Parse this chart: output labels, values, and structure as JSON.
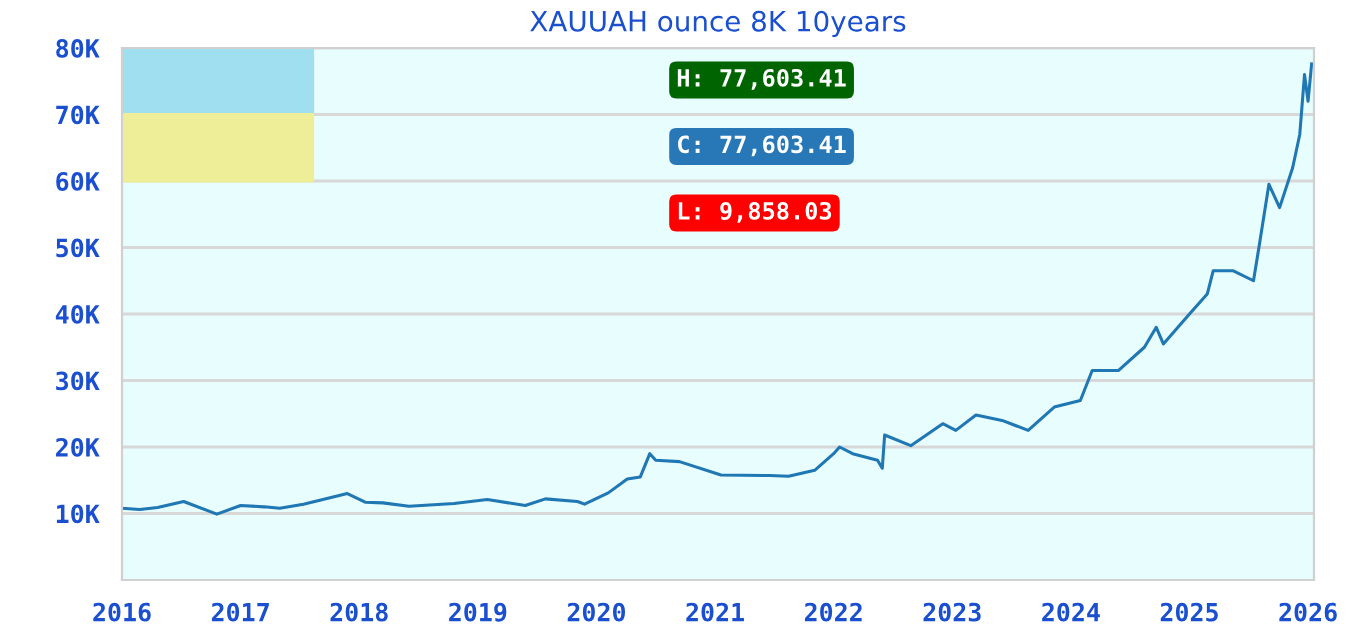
{
  "chart_data": {
    "type": "line",
    "title": "XAUUAH ounce 8K 10years",
    "x": [
      2016.0,
      2016.15,
      2016.3,
      2016.52,
      2016.8,
      2017.0,
      2017.2,
      2017.33,
      2017.53,
      2017.9,
      2018.05,
      2018.2,
      2018.42,
      2018.8,
      2019.08,
      2019.4,
      2019.57,
      2019.84,
      2019.9,
      2020.1,
      2020.26,
      2020.37,
      2020.45,
      2020.5,
      2020.7,
      2021.05,
      2021.46,
      2021.62,
      2021.84,
      2022.0,
      2022.05,
      2022.16,
      2022.37,
      2022.41,
      2022.43,
      2022.65,
      2022.92,
      2023.03,
      2023.2,
      2023.42,
      2023.64,
      2023.86,
      2024.08,
      2024.18,
      2024.4,
      2024.62,
      2024.72,
      2024.78,
      2025.0,
      2025.15,
      2025.2,
      2025.37,
      2025.54,
      2025.59,
      2025.67,
      2025.76,
      2025.87,
      2025.93,
      2025.97,
      2026.0,
      2026.03
    ],
    "series": [
      {
        "color": "#1f77b4",
        "values": [
          10.8,
          10.6,
          10.9,
          11.8,
          9.9,
          11.2,
          11.0,
          10.8,
          11.4,
          13.0,
          11.7,
          11.6,
          11.1,
          11.5,
          12.1,
          11.2,
          12.2,
          11.8,
          11.4,
          13.1,
          15.2,
          15.5,
          19.0,
          18.0,
          17.8,
          15.8,
          15.7,
          15.6,
          16.5,
          19.0,
          20.0,
          19.0,
          18.0,
          16.8,
          21.8,
          20.2,
          23.5,
          22.5,
          24.8,
          24.0,
          22.5,
          26.0,
          27.0,
          31.5,
          31.5,
          35.0,
          38.0,
          35.5,
          40.0,
          43.0,
          46.5,
          46.5,
          45.0,
          50.5,
          59.5,
          56.0,
          62.0,
          67.0,
          76.0,
          72.0,
          77.6
        ]
      }
    ],
    "xlim": [
      2016,
      2026.05
    ],
    "xticks": [
      2016,
      2017,
      2018,
      2019,
      2020,
      2021,
      2022,
      2023,
      2024,
      2025,
      2026
    ],
    "ylim": [
      0,
      80
    ],
    "yticks": [
      {
        "value": 10,
        "label": "10K"
      },
      {
        "value": 20,
        "label": "20K"
      },
      {
        "value": 30,
        "label": "30K"
      },
      {
        "value": 40,
        "label": "40K"
      },
      {
        "value": 50,
        "label": "50K"
      },
      {
        "value": 60,
        "label": "60K"
      },
      {
        "value": 70,
        "label": "70K"
      },
      {
        "value": 80,
        "label": "80K"
      }
    ],
    "grid": "y",
    "legend": false,
    "annotations": [
      "H: 77,603.41",
      "C: 77,603.41",
      "L: 9,858.03"
    ]
  }
}
